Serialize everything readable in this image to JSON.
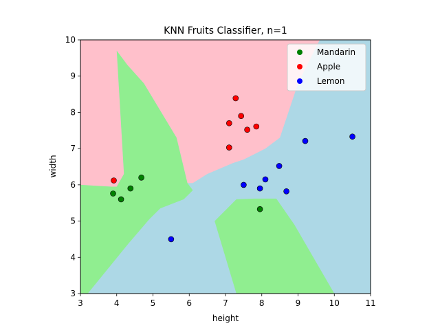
{
  "chart_data": {
    "type": "scatter",
    "title": "KNN Fruits Classifier, n=1",
    "xlabel": "height",
    "ylabel": "width",
    "xlim": [
      3,
      11
    ],
    "ylim": [
      3,
      10
    ],
    "xticks": [
      "3",
      "4",
      "5",
      "6",
      "7",
      "8",
      "9",
      "10",
      "11"
    ],
    "yticks": [
      "3",
      "4",
      "5",
      "6",
      "7",
      "8",
      "9",
      "10"
    ],
    "grid": false,
    "legend_position": "top-right",
    "background_color": "#add8e6",
    "regions": [
      {
        "class": "Apple",
        "color": "#ffc0cb",
        "polygon": [
          [
            3,
            10
          ],
          [
            9.6,
            10
          ],
          [
            9.45,
            9.7
          ],
          [
            9.0,
            8.8
          ],
          [
            8.5,
            7.3
          ],
          [
            8.1,
            7.0
          ],
          [
            7.8,
            6.85
          ],
          [
            7.5,
            6.7
          ],
          [
            7.2,
            6.6
          ],
          [
            6.5,
            6.3
          ],
          [
            6.1,
            6.05
          ],
          [
            5.95,
            6.05
          ],
          [
            5.65,
            7.3
          ],
          [
            4.75,
            8.8
          ],
          [
            4.3,
            9.3
          ],
          [
            4.0,
            9.7
          ],
          [
            4.2,
            6.3
          ],
          [
            4.0,
            5.95
          ],
          [
            3.85,
            5.95
          ],
          [
            3,
            6.0
          ]
        ]
      },
      {
        "class": "Mandarin",
        "color": "#90ee90",
        "polygon": [
          [
            4.0,
            9.7
          ],
          [
            4.3,
            9.3
          ],
          [
            4.75,
            8.8
          ],
          [
            5.65,
            7.3
          ],
          [
            5.95,
            6.05
          ],
          [
            6.1,
            5.85
          ],
          [
            5.85,
            5.6
          ],
          [
            5.2,
            5.35
          ],
          [
            4.9,
            5.05
          ],
          [
            4.3,
            4.35
          ],
          [
            3.2,
            3.0
          ],
          [
            3,
            3.0
          ],
          [
            3,
            6.0
          ],
          [
            3.85,
            5.95
          ],
          [
            4.0,
            5.95
          ],
          [
            4.2,
            6.3
          ]
        ]
      },
      {
        "class": "Mandarin",
        "color": "#90ee90",
        "polygon": [
          [
            6.7,
            5.0
          ],
          [
            7.3,
            5.6
          ],
          [
            7.8,
            5.62
          ],
          [
            8.4,
            5.62
          ],
          [
            8.9,
            4.9
          ],
          [
            10.0,
            3.0
          ],
          [
            7.3,
            3.0
          ]
        ]
      }
    ],
    "series": [
      {
        "name": "Mandarin",
        "color": "#008000",
        "points": [
          [
            3.9,
            5.76
          ],
          [
            4.12,
            5.6
          ],
          [
            4.38,
            5.9
          ],
          [
            4.68,
            6.2
          ],
          [
            7.95,
            5.33
          ]
        ]
      },
      {
        "name": "Apple",
        "color": "#ff0000",
        "points": [
          [
            3.92,
            6.12
          ],
          [
            7.1,
            7.03
          ],
          [
            7.1,
            7.7
          ],
          [
            7.28,
            8.39
          ],
          [
            7.43,
            7.9
          ],
          [
            7.6,
            7.52
          ],
          [
            7.85,
            7.61
          ]
        ]
      },
      {
        "name": "Lemon",
        "color": "#0000ff",
        "points": [
          [
            5.5,
            4.5
          ],
          [
            7.5,
            6.0
          ],
          [
            7.95,
            5.9
          ],
          [
            8.1,
            6.15
          ],
          [
            8.48,
            6.52
          ],
          [
            8.68,
            5.82
          ],
          [
            9.2,
            7.21
          ],
          [
            10.5,
            7.33
          ]
        ]
      }
    ]
  }
}
